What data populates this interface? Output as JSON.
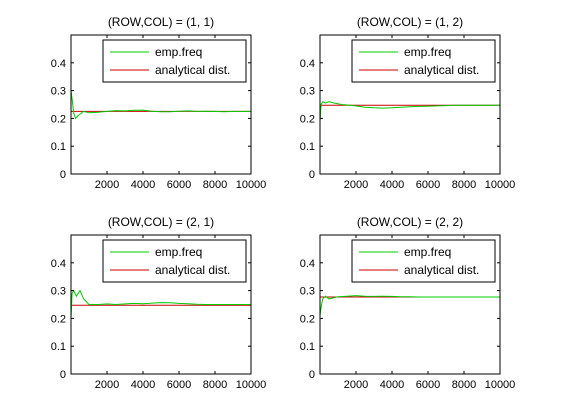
{
  "figure": {
    "background": "#ffffff",
    "emp_color": "#00cc00",
    "analytical_color": "#cc0000",
    "axis_color": "#000000"
  },
  "chart_data": [
    {
      "type": "line",
      "title": "(ROW,COL) = (1, 1)",
      "xlim": [
        0,
        10000
      ],
      "ylim": [
        0,
        0.5
      ],
      "xticks": [
        2000,
        4000,
        6000,
        8000,
        10000
      ],
      "xtick_labels": [
        "2000",
        "4000",
        "6000",
        "8000",
        "10000"
      ],
      "yticks": [
        0,
        0.1,
        0.2,
        0.3,
        0.4
      ],
      "ytick_labels": [
        "0",
        "0.1",
        "0.2",
        "0.3",
        "0.4"
      ],
      "grid": false,
      "legend_position": "top-right",
      "series": [
        {
          "name": "emp.freq",
          "x": [
            1,
            60,
            150,
            250,
            400,
            700,
            1000,
            1500,
            2000,
            2500,
            3000,
            3500,
            4000,
            4500,
            5000,
            5500,
            6000,
            6500,
            7000,
            7500,
            8000,
            8500,
            9000,
            9500,
            10000
          ],
          "y": [
            0.3,
            0.27,
            0.22,
            0.2,
            0.21,
            0.225,
            0.22,
            0.222,
            0.225,
            0.228,
            0.227,
            0.229,
            0.23,
            0.226,
            0.224,
            0.224,
            0.226,
            0.227,
            0.225,
            0.226,
            0.225,
            0.224,
            0.225,
            0.225,
            0.225
          ]
        },
        {
          "name": "analytical dist.",
          "x": [
            0,
            10000
          ],
          "y": [
            0.225,
            0.225
          ]
        }
      ]
    },
    {
      "type": "line",
      "title": "(ROW,COL) = (1, 2)",
      "xlim": [
        0,
        10000
      ],
      "ylim": [
        0,
        0.5
      ],
      "xticks": [
        2000,
        4000,
        6000,
        8000,
        10000
      ],
      "xtick_labels": [
        "2000",
        "4000",
        "6000",
        "8000",
        "10000"
      ],
      "yticks": [
        0,
        0.1,
        0.2,
        0.3,
        0.4
      ],
      "ytick_labels": [
        "0",
        "0.1",
        "0.2",
        "0.3",
        "0.4"
      ],
      "grid": false,
      "legend_position": "top-right",
      "series": [
        {
          "name": "emp.freq",
          "x": [
            1,
            60,
            150,
            300,
            500,
            800,
            1200,
            1600,
            2000,
            2500,
            3000,
            3500,
            4000,
            4500,
            5000,
            5500,
            6000,
            6500,
            7000,
            7500,
            8000,
            9000,
            10000
          ],
          "y": [
            0.19,
            0.25,
            0.26,
            0.255,
            0.26,
            0.255,
            0.25,
            0.248,
            0.245,
            0.24,
            0.238,
            0.237,
            0.238,
            0.24,
            0.242,
            0.243,
            0.244,
            0.245,
            0.246,
            0.247,
            0.247,
            0.247,
            0.247
          ]
        },
        {
          "name": "analytical dist.",
          "x": [
            0,
            10000
          ],
          "y": [
            0.247,
            0.247
          ]
        }
      ]
    },
    {
      "type": "line",
      "title": "(ROW,COL) = (2, 1)",
      "xlim": [
        0,
        10000
      ],
      "ylim": [
        0,
        0.5
      ],
      "xticks": [
        2000,
        4000,
        6000,
        8000,
        10000
      ],
      "xtick_labels": [
        "2000",
        "4000",
        "6000",
        "8000",
        "10000"
      ],
      "yticks": [
        0,
        0.1,
        0.2,
        0.3,
        0.4
      ],
      "ytick_labels": [
        "0",
        "0.1",
        "0.2",
        "0.3",
        "0.4"
      ],
      "grid": false,
      "legend_position": "top-right",
      "series": [
        {
          "name": "emp.freq",
          "x": [
            1,
            60,
            150,
            300,
            500,
            700,
            1000,
            1500,
            2000,
            2500,
            3000,
            3500,
            4000,
            4500,
            5000,
            5500,
            6000,
            6500,
            7000,
            7500,
            8000,
            9000,
            10000
          ],
          "y": [
            0.2,
            0.29,
            0.3,
            0.28,
            0.3,
            0.27,
            0.25,
            0.25,
            0.252,
            0.25,
            0.252,
            0.254,
            0.253,
            0.255,
            0.257,
            0.256,
            0.254,
            0.253,
            0.251,
            0.25,
            0.25,
            0.25,
            0.25
          ]
        },
        {
          "name": "analytical dist.",
          "x": [
            0,
            10000
          ],
          "y": [
            0.247,
            0.247
          ]
        }
      ]
    },
    {
      "type": "line",
      "title": "(ROW,COL) = (2, 2)",
      "xlim": [
        0,
        10000
      ],
      "ylim": [
        0,
        0.5
      ],
      "xticks": [
        2000,
        4000,
        6000,
        8000,
        10000
      ],
      "xtick_labels": [
        "2000",
        "4000",
        "6000",
        "8000",
        "10000"
      ],
      "yticks": [
        0,
        0.1,
        0.2,
        0.3,
        0.4
      ],
      "ytick_labels": [
        "0",
        "0.1",
        "0.2",
        "0.3",
        "0.4"
      ],
      "grid": false,
      "legend_position": "top-right",
      "series": [
        {
          "name": "emp.freq",
          "x": [
            1,
            60,
            150,
            300,
            500,
            800,
            1000,
            1500,
            2000,
            2500,
            3000,
            3500,
            4000,
            4500,
            5000,
            5500,
            6000,
            7000,
            8000,
            9000,
            10000
          ],
          "y": [
            0.21,
            0.24,
            0.27,
            0.28,
            0.27,
            0.275,
            0.278,
            0.28,
            0.282,
            0.28,
            0.279,
            0.28,
            0.279,
            0.278,
            0.278,
            0.277,
            0.277,
            0.277,
            0.277,
            0.277,
            0.277
          ]
        },
        {
          "name": "analytical dist.",
          "x": [
            0,
            10000
          ],
          "y": [
            0.277,
            0.277
          ]
        }
      ]
    }
  ]
}
